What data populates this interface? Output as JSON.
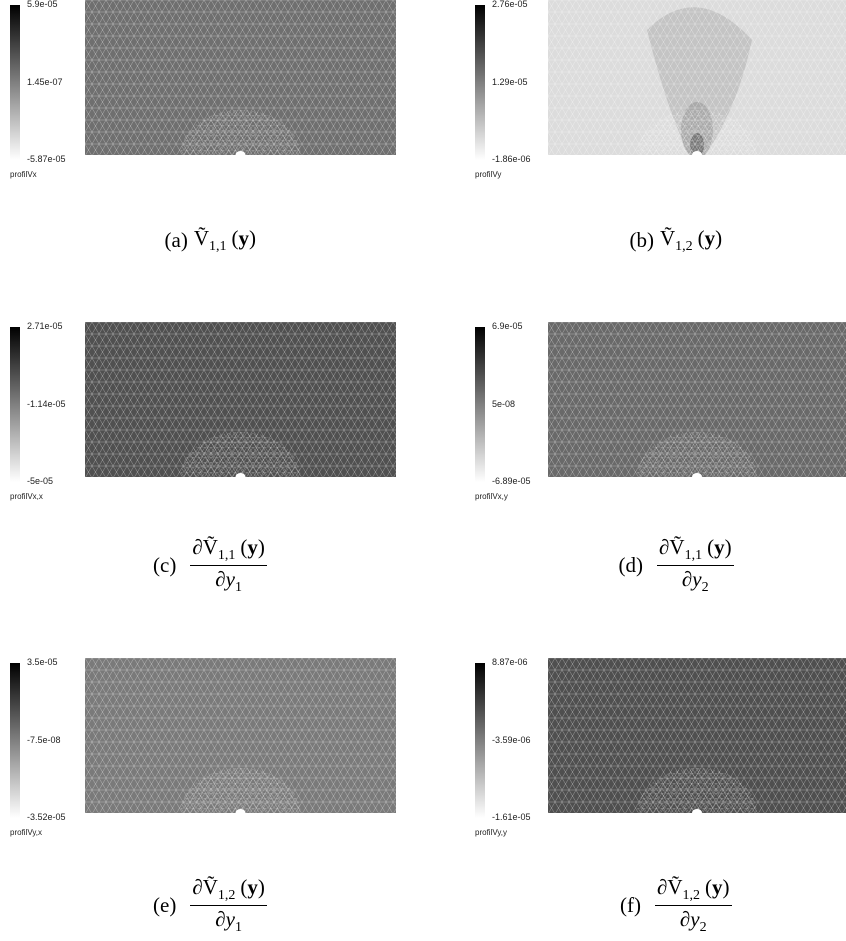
{
  "panels": [
    {
      "scale": {
        "max": "5.9e-05",
        "mid": "1.45e-07",
        "min": "-5.87e-05"
      },
      "field": "profilVx",
      "caption": {
        "label": "(a)",
        "symbol": "Ṽ",
        "sub": "1,1",
        "arg": [
          "(",
          "y",
          ")"
        ]
      }
    },
    {
      "scale": {
        "max": "2.76e-05",
        "mid": "1.29e-05",
        "min": "-1.86e-06"
      },
      "field": "profilVy",
      "caption": {
        "label": "(b)",
        "symbol": "Ṽ",
        "sub": "1,2",
        "arg": [
          "(",
          "y",
          ")"
        ]
      }
    },
    {
      "scale": {
        "max": "2.71e-05",
        "mid": "-1.14e-05",
        "min": "-5e-05"
      },
      "field": "profilVx,x",
      "caption": {
        "label": "(c)",
        "partial": "∂",
        "symbol": "Ṽ",
        "sub": "1,1",
        "arg": [
          "(",
          "y",
          ")"
        ],
        "den": "∂y",
        "den_sub": "1"
      }
    },
    {
      "scale": {
        "max": "6.9e-05",
        "mid": "5e-08",
        "min": "-6.89e-05"
      },
      "field": "profilVx,y",
      "caption": {
        "label": "(d)",
        "partial": "∂",
        "symbol": "Ṽ",
        "sub": "1,1",
        "arg": [
          "(",
          "y",
          ")"
        ],
        "den": "∂y",
        "den_sub": "2"
      }
    },
    {
      "scale": {
        "max": "3.5e-05",
        "mid": "-7.5e-08",
        "min": "-3.52e-05"
      },
      "field": "profilVy,x",
      "caption": {
        "label": "(e)",
        "partial": "∂",
        "symbol": "Ṽ",
        "sub": "1,2",
        "arg": [
          "(",
          "y",
          ")"
        ],
        "den": "∂y",
        "den_sub": "1"
      }
    },
    {
      "scale": {
        "max": "8.87e-06",
        "mid": "-3.59e-06",
        "min": "-1.61e-05"
      },
      "field": "profilVy,y",
      "caption": {
        "label": "(f)",
        "partial": "∂",
        "symbol": "Ṽ",
        "sub": "1,2",
        "arg": [
          "(",
          "y",
          ")"
        ],
        "den": "∂y",
        "den_sub": "2"
      }
    }
  ]
}
